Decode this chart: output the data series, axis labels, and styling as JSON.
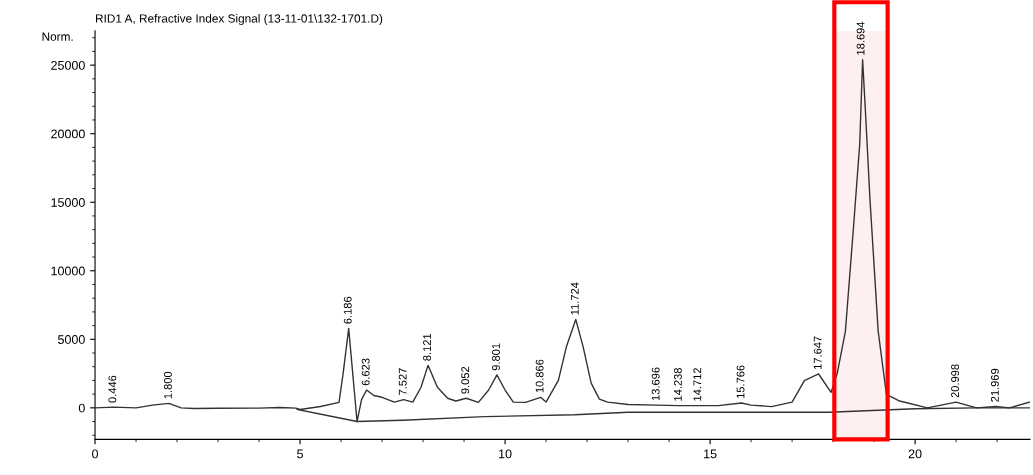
{
  "chart_data": {
    "type": "line",
    "title": "RID1 A, Refractive Index Signal (13-11-01\\132-1701.D)",
    "ylabel": "Norm.",
    "xlim": [
      0,
      22.8
    ],
    "ylim": [
      -2300,
      27500
    ],
    "xticks": [
      0,
      5,
      10,
      15,
      20
    ],
    "yticks": [
      0,
      5000,
      10000,
      15000,
      20000,
      25000
    ],
    "grid": false,
    "marker": "none",
    "line_style": "solid",
    "series": [
      {
        "color": "#333333",
        "x": [
          0,
          0.45,
          1.0,
          1.4,
          1.8,
          2.1,
          2.4,
          3.0,
          4.0,
          4.5,
          4.9,
          5.0,
          5.5,
          5.95,
          6.05,
          6.186,
          6.3,
          6.39,
          6.5,
          6.623,
          6.8,
          7.0,
          7.3,
          7.527,
          7.75,
          7.95,
          8.121,
          8.35,
          8.6,
          8.8,
          9.052,
          9.35,
          9.6,
          9.801,
          10.0,
          10.2,
          10.5,
          10.866,
          11.0,
          11.3,
          11.5,
          11.724,
          11.9,
          12.1,
          12.3,
          12.5,
          13.0,
          13.696,
          14.238,
          14.712,
          15.2,
          15.766,
          16.0,
          16.5,
          17.0,
          17.3,
          17.647,
          17.95,
          18.1,
          18.3,
          18.5,
          18.65,
          18.72,
          18.8,
          18.9,
          19.1,
          19.3,
          19.6,
          20.3,
          20.998,
          21.5,
          21.969,
          22.3,
          22.8
        ],
        "values": [
          0,
          50,
          0,
          200,
          330,
          0,
          -50,
          -30,
          -20,
          30,
          -20,
          -120,
          100,
          400,
          2500,
          5800,
          2000,
          -1000,
          600,
          1300,
          900,
          770,
          420,
          600,
          420,
          1500,
          3100,
          1500,
          700,
          500,
          700,
          400,
          1300,
          2400,
          1300,
          420,
          400,
          770,
          420,
          2000,
          4500,
          6450,
          4500,
          1800,
          640,
          420,
          240,
          200,
          160,
          160,
          160,
          350,
          200,
          90,
          420,
          1980,
          2470,
          1130,
          2500,
          5580,
          13270,
          19270,
          25400,
          21000,
          15180,
          5580,
          990,
          520,
          0,
          420,
          0,
          100,
          0,
          420
        ]
      },
      {
        "color": "#333333",
        "x": [
          4.93,
          6.39,
          7.5,
          9.5,
          11.7,
          13.0,
          17.9,
          20.0,
          21.5,
          22.8
        ],
        "values": [
          -120,
          -1000,
          -900,
          -640,
          -500,
          -320,
          -320,
          -70,
          0,
          0
        ]
      }
    ],
    "annotations": [
      {
        "text": "0.446",
        "x": 0.446,
        "y": 50
      },
      {
        "text": "1.800",
        "x": 1.8,
        "y": 330
      },
      {
        "text": "6.186",
        "x": 6.186,
        "y": 5800
      },
      {
        "text": "6.623",
        "x": 6.623,
        "y": 1300
      },
      {
        "text": "7.527",
        "x": 7.527,
        "y": 600
      },
      {
        "text": "8.121",
        "x": 8.121,
        "y": 3100
      },
      {
        "text": "9.052",
        "x": 9.052,
        "y": 700
      },
      {
        "text": "9.801",
        "x": 9.801,
        "y": 2400
      },
      {
        "text": "10.866",
        "x": 10.866,
        "y": 770
      },
      {
        "text": "11.724",
        "x": 11.724,
        "y": 6450
      },
      {
        "text": "13.696",
        "x": 13.696,
        "y": 200
      },
      {
        "text": "14.238",
        "x": 14.238,
        "y": 160
      },
      {
        "text": "14.712",
        "x": 14.712,
        "y": 160
      },
      {
        "text": "15.766",
        "x": 15.766,
        "y": 350
      },
      {
        "text": "17.647",
        "x": 17.647,
        "y": 2470
      },
      {
        "text": "18.694",
        "x": 18.694,
        "y": 25400
      },
      {
        "text": "20.998",
        "x": 20.998,
        "y": 420
      },
      {
        "text": "21.969",
        "x": 21.969,
        "y": 100
      }
    ],
    "bands": [
      {
        "axis": "x",
        "from": 18.03,
        "to": 19.33,
        "color": "#ff0000"
      }
    ]
  }
}
